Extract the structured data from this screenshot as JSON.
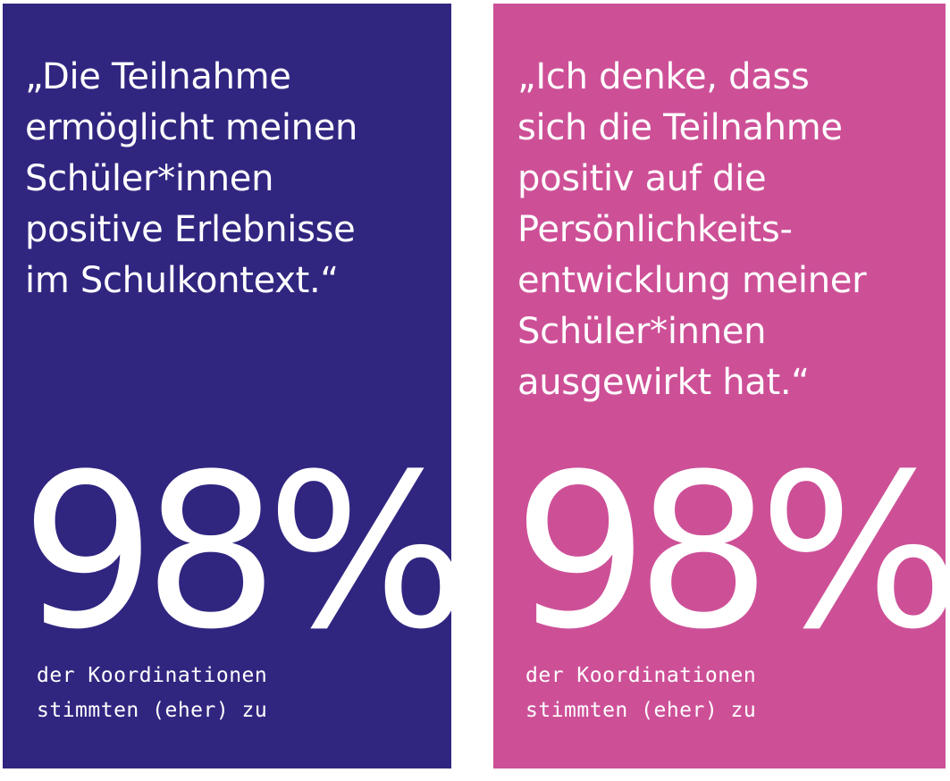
{
  "colors": {
    "left_background": "#302680",
    "right_background": "#cd5097",
    "text": "#ffffff"
  },
  "cards": [
    {
      "quote": "„Die Teilnahme\nermöglicht meinen\nSchüler*innen\npositive Erlebnisse\nim Schulkontext.“",
      "percentage": "98%",
      "caption": "der Koordinationen\nstimmten (eher) zu"
    },
    {
      "quote": "„Ich denke, dass\nsich die Teilnahme\npositiv auf die\nPersönlichkeits-\nentwicklung meiner\nSchüler*innen\nausgewirkt hat.“",
      "percentage": "98%",
      "caption": "der Koordinationen\nstimmten (eher) zu"
    }
  ]
}
